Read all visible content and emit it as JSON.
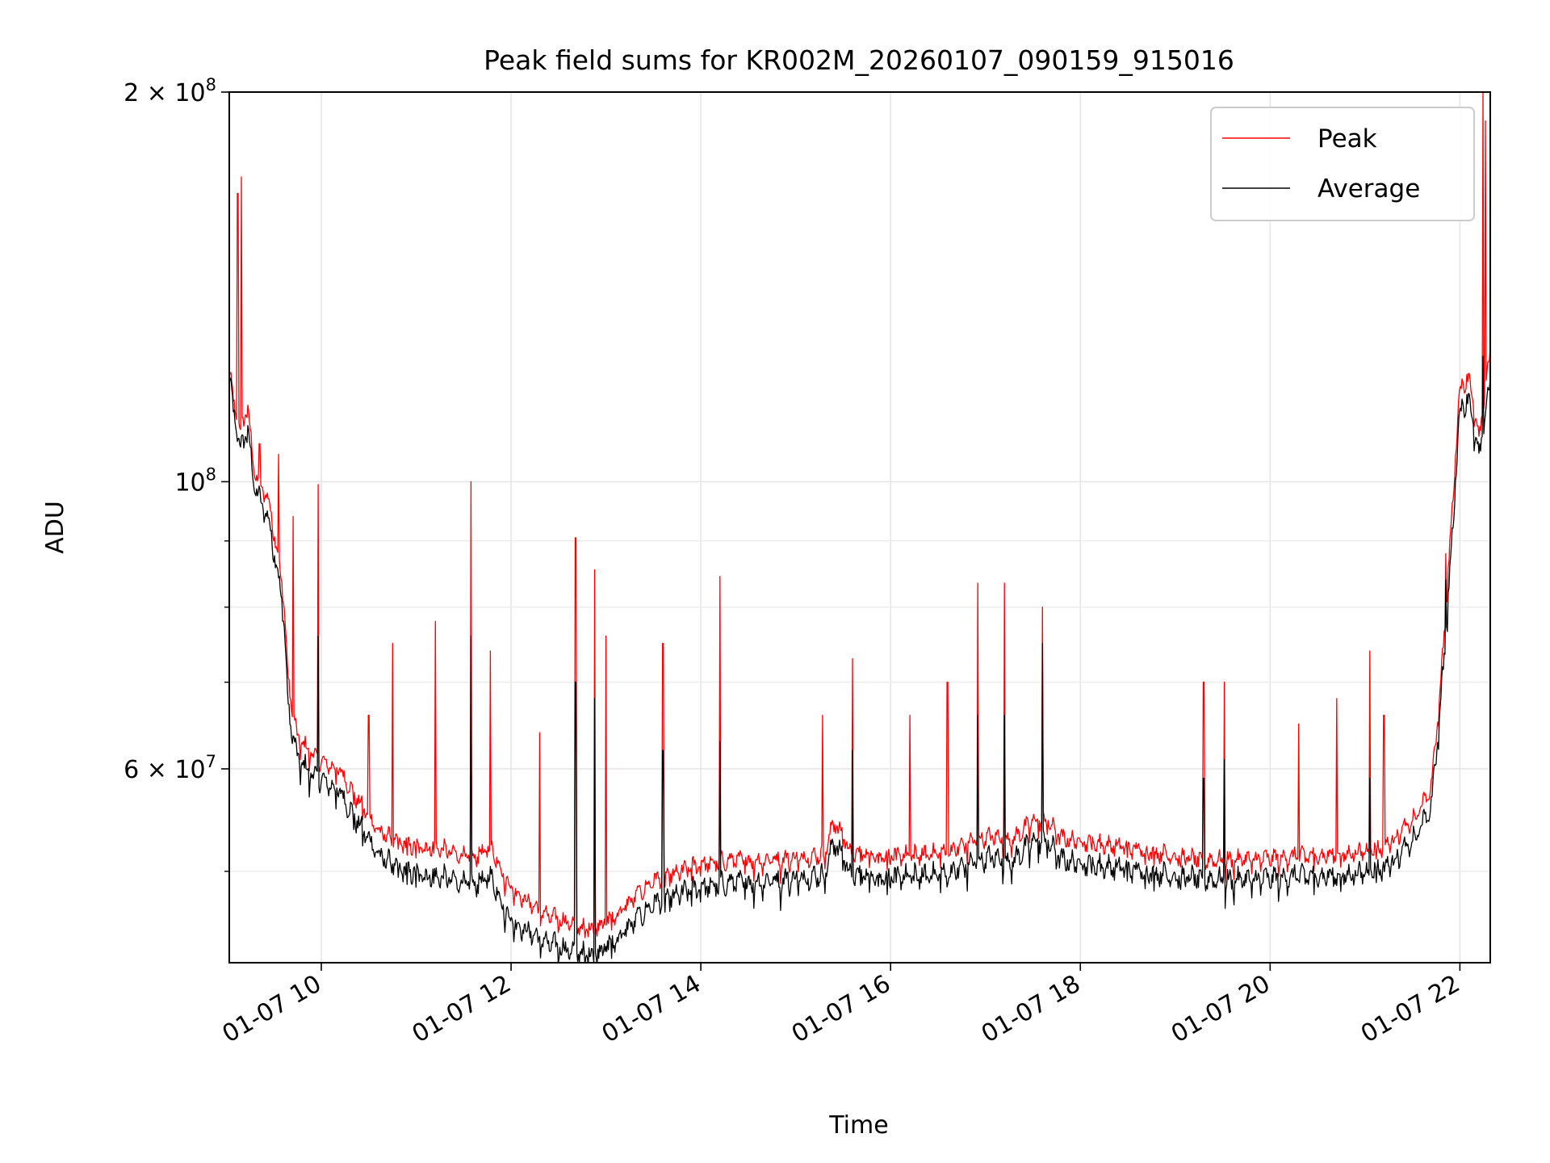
{
  "chart_data": {
    "type": "line",
    "title": "Peak field sums for KR002M_20260107_090159_915016",
    "xlabel": "Time",
    "ylabel": "ADU",
    "y_scale": "log",
    "xlim_hours": [
      9.03,
      22.32
    ],
    "ylim": [
      42500000,
      200000000
    ],
    "grid": true,
    "legend_position": "upper right",
    "x_ticks": [
      {
        "value": 10,
        "label": "01-07 10"
      },
      {
        "value": 12,
        "label": "01-07 12"
      },
      {
        "value": 14,
        "label": "01-07 14"
      },
      {
        "value": 16,
        "label": "01-07 16"
      },
      {
        "value": 18,
        "label": "01-07 18"
      },
      {
        "value": 20,
        "label": "01-07 20"
      },
      {
        "value": 22,
        "label": "01-07 22"
      }
    ],
    "y_major_ticks": [
      {
        "value": 60000000,
        "mantissa": "6",
        "exponent": "7"
      },
      {
        "value": 100000000,
        "mantissa": "",
        "exponent": "8"
      },
      {
        "value": 200000000,
        "mantissa": "2",
        "exponent": "8"
      }
    ],
    "y_minor_ticks": [
      50000000,
      70000000,
      80000000,
      90000000
    ],
    "x_hours": [
      9.03,
      9.1,
      9.15,
      9.22,
      9.3,
      9.45,
      9.6,
      9.65,
      9.75,
      9.9,
      10.0,
      10.2,
      10.35,
      10.5,
      10.6,
      10.8,
      11.0,
      11.2,
      11.4,
      11.6,
      11.8,
      11.95,
      12.05,
      12.2,
      12.4,
      12.6,
      12.75,
      12.9,
      13.1,
      13.3,
      13.5,
      13.8,
      14.0,
      14.3,
      14.6,
      15.0,
      15.3,
      15.4,
      15.5,
      15.6,
      16.0,
      16.3,
      16.6,
      16.9,
      17.1,
      17.3,
      17.5,
      17.65,
      17.8,
      18.2,
      18.6,
      19.0,
      19.3,
      19.6,
      20.0,
      20.4,
      20.8,
      21.2,
      21.4,
      21.55,
      21.7,
      21.8,
      21.9,
      22.0,
      22.1,
      22.2,
      22.32
    ],
    "series": [
      {
        "name": "Peak",
        "color": "#ff0000",
        "values": [
          121000000,
          112000000,
          109000000,
          114000000,
          101000000,
          96000000,
          82000000,
          70000000,
          63000000,
          61500000,
          60500000,
          59500000,
          57000000,
          55000000,
          53500000,
          52500000,
          52000000,
          52000000,
          51500000,
          51000000,
          52000000,
          49000000,
          48000000,
          47000000,
          46000000,
          45500000,
          45000000,
          45200000,
          46000000,
          47500000,
          49000000,
          49800000,
          50500000,
          50800000,
          50800000,
          51000000,
          51300000,
          54500000,
          53000000,
          51500000,
          51200000,
          51300000,
          51500000,
          52800000,
          53000000,
          52800000,
          54500000,
          54500000,
          52800000,
          52300000,
          51800000,
          51200000,
          50800000,
          50800000,
          51000000,
          51200000,
          51300000,
          52000000,
          53500000,
          55000000,
          58000000,
          70000000,
          90000000,
          118000000,
          120000000,
          107000000,
          126000000
        ],
        "spikes": [
          [
            9.12,
            167000000
          ],
          [
            9.16,
            172000000
          ],
          [
            9.35,
            107000000
          ],
          [
            9.55,
            105000000
          ],
          [
            9.7,
            94000000
          ],
          [
            9.97,
            99500000
          ],
          [
            10.5,
            66000000
          ],
          [
            10.75,
            75000000
          ],
          [
            11.2,
            78000000
          ],
          [
            11.58,
            100000000
          ],
          [
            11.78,
            74000000
          ],
          [
            12.3,
            64000000
          ],
          [
            12.68,
            90500000
          ],
          [
            12.88,
            85500000
          ],
          [
            13.0,
            76000000
          ],
          [
            13.6,
            75000000
          ],
          [
            14.2,
            84500000
          ],
          [
            15.28,
            66000000
          ],
          [
            15.6,
            73000000
          ],
          [
            16.2,
            66000000
          ],
          [
            16.6,
            70000000
          ],
          [
            16.92,
            83500000
          ],
          [
            17.2,
            83500000
          ],
          [
            17.6,
            80000000
          ],
          [
            19.3,
            70000000
          ],
          [
            19.52,
            70000000
          ],
          [
            20.3,
            65000000
          ],
          [
            20.7,
            68000000
          ],
          [
            21.05,
            74000000
          ],
          [
            21.2,
            66000000
          ],
          [
            21.85,
            88000000
          ],
          [
            22.24,
            202000000
          ],
          [
            22.27,
            190000000
          ]
        ]
      },
      {
        "name": "Average",
        "color": "#000000",
        "values": [
          120000000,
          110000000,
          106000000,
          110000000,
          99000000,
          93000000,
          80000000,
          67000000,
          61000000,
          59500000,
          58800000,
          57500000,
          55000000,
          53000000,
          51500000,
          50300000,
          49800000,
          49600000,
          49300000,
          48800000,
          49500000,
          46500000,
          45500000,
          44800000,
          44000000,
          43500000,
          43200000,
          43300000,
          44200000,
          45700000,
          47200000,
          48100000,
          48700000,
          49000000,
          49100000,
          49400000,
          49700000,
          52800000,
          51300000,
          49800000,
          49500000,
          49600000,
          49800000,
          51000000,
          51300000,
          51000000,
          52800000,
          52800000,
          51000000,
          50500000,
          50100000,
          49600000,
          49300000,
          49200000,
          49400000,
          49600000,
          49600000,
          50300000,
          51700000,
          53300000,
          56300000,
          68000000,
          86000000,
          114000000,
          116000000,
          104000000,
          120000000
        ],
        "spikes": [
          [
            9.97,
            76000000
          ],
          [
            11.58,
            76000000
          ],
          [
            12.68,
            70000000
          ],
          [
            12.88,
            68000000
          ],
          [
            13.6,
            62000000
          ],
          [
            14.2,
            63000000
          ],
          [
            15.6,
            62000000
          ],
          [
            16.92,
            66000000
          ],
          [
            17.2,
            66000000
          ],
          [
            17.6,
            75000000
          ],
          [
            19.3,
            59000000
          ],
          [
            19.52,
            61000000
          ],
          [
            21.05,
            59000000
          ],
          [
            21.85,
            84000000
          ],
          [
            22.24,
            125000000
          ]
        ]
      }
    ]
  }
}
